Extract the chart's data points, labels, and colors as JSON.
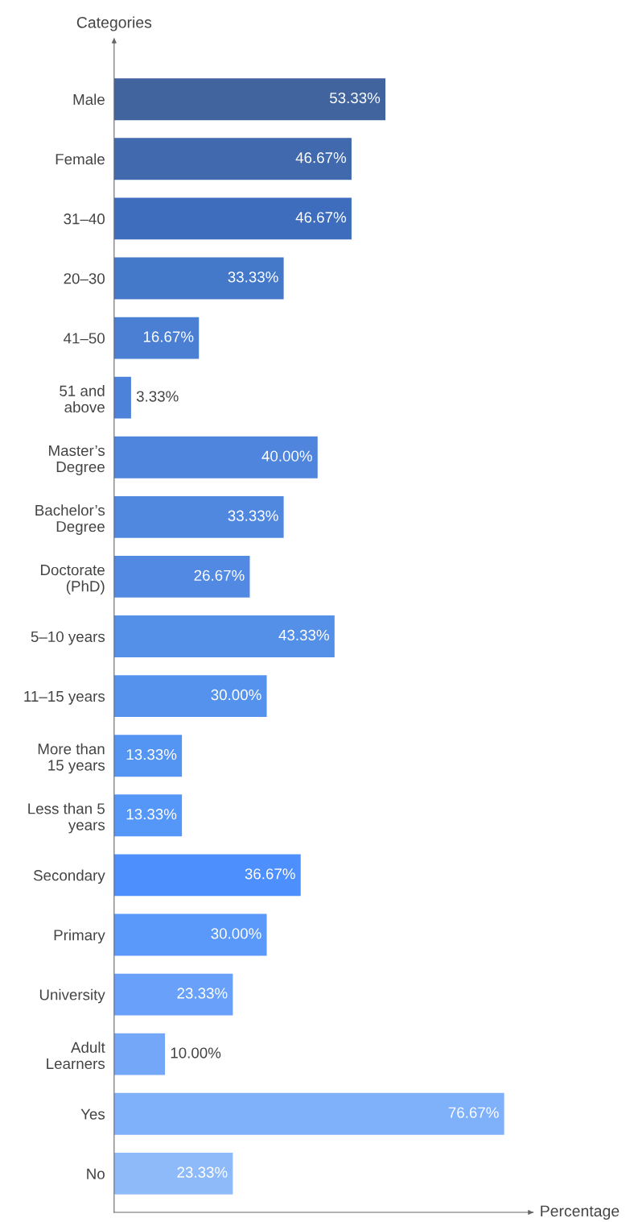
{
  "chart_data": {
    "type": "bar",
    "orientation": "horizontal",
    "xlabel": "Percentage",
    "ylabel": "Categories",
    "categories": [
      "Male",
      "Female",
      "31–40",
      "20–30",
      "41–50",
      "51 and\nabove",
      "Master’s\nDegree",
      "Bachelor’s\nDegree",
      "Doctorate\n(PhD)",
      "5–10 years",
      "11–15 years",
      "More than\n15 years",
      "Less than 5\nyears",
      "Secondary",
      "Primary",
      "University",
      "Adult\nLearners",
      "Yes",
      "No"
    ],
    "values": [
      53.33,
      46.67,
      46.67,
      33.33,
      16.67,
      3.33,
      40.0,
      33.33,
      26.67,
      43.33,
      30.0,
      13.33,
      13.33,
      36.67,
      30.0,
      23.33,
      10.0,
      76.67,
      23.33
    ],
    "value_labels": [
      "53.33%",
      "46.67%",
      "46.67%",
      "33.33%",
      "16.67%",
      "3.33%",
      "40.00%",
      "33.33%",
      "26.67%",
      "43.33%",
      "30.00%",
      "13.33%",
      "13.33%",
      "36.67%",
      "30.00%",
      "23.33%",
      "10.00%",
      "76.67%",
      "23.33%"
    ],
    "colors": [
      "#42649e",
      "#4169ad",
      "#3f6dbd",
      "#4478c9",
      "#4a7fd4",
      "#4c82d9",
      "#4f85dc",
      "#5088e0",
      "#528ae3",
      "#5590e8",
      "#5592ee",
      "#5495f3",
      "#5597f8",
      "#4d8ffd",
      "#5a98fa",
      "#68a0fa",
      "#74a7f8",
      "#7fb0fa",
      "#8fbafa"
    ],
    "xlim": [
      0,
      82
    ],
    "tick_labels": "y",
    "grid": false,
    "legend": false
  }
}
